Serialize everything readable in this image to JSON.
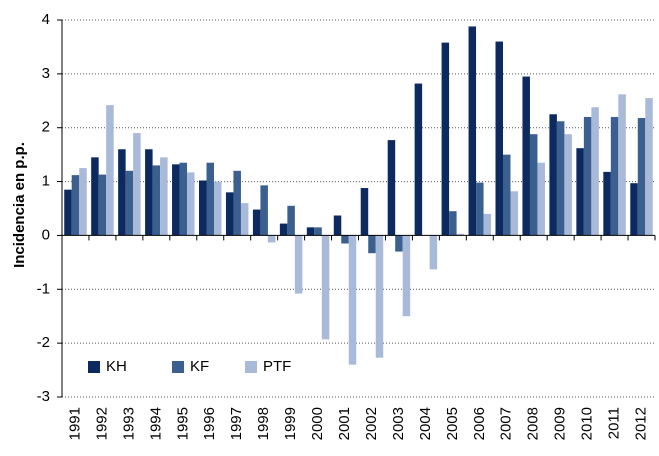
{
  "chart_data": {
    "type": "bar",
    "y_label": "Incidencia en p.p.",
    "categories": [
      "1991",
      "1992",
      "1993",
      "1994",
      "1995",
      "1996",
      "1997",
      "1998",
      "1999",
      "2000",
      "2001",
      "2002",
      "2003",
      "2004",
      "2005",
      "2006",
      "2007",
      "2008",
      "2009",
      "2010",
      "2011",
      "2012"
    ],
    "series": [
      {
        "name": "KH",
        "color": "#0c2a60",
        "values": [
          0.85,
          1.45,
          1.6,
          1.6,
          1.32,
          1.02,
          0.8,
          0.48,
          0.22,
          0.15,
          0.37,
          0.88,
          1.77,
          2.82,
          3.58,
          3.88,
          3.6,
          2.95,
          2.25,
          1.62,
          1.18,
          0.97
        ]
      },
      {
        "name": "KF",
        "color": "#3b6090",
        "values": [
          1.12,
          1.13,
          1.2,
          1.3,
          1.35,
          1.35,
          1.2,
          0.93,
          0.55,
          0.15,
          -0.15,
          -0.33,
          -0.3,
          0,
          0.45,
          0.98,
          1.5,
          1.88,
          2.12,
          2.2,
          2.2,
          2.18
        ]
      },
      {
        "name": "PTF",
        "color": "#a9bad9",
        "values": [
          1.25,
          2.42,
          1.9,
          1.45,
          1.17,
          1.0,
          0.6,
          -0.13,
          -1.08,
          -1.93,
          -2.4,
          -2.27,
          -1.5,
          -0.63,
          0.03,
          0.4,
          0.82,
          1.35,
          1.88,
          2.38,
          2.62,
          2.55
        ]
      }
    ],
    "ylim": [
      -3,
      4
    ],
    "yticks": [
      -3,
      -2,
      -1,
      0,
      1,
      2,
      3,
      4
    ],
    "grid": true,
    "legend": "lower-left"
  }
}
